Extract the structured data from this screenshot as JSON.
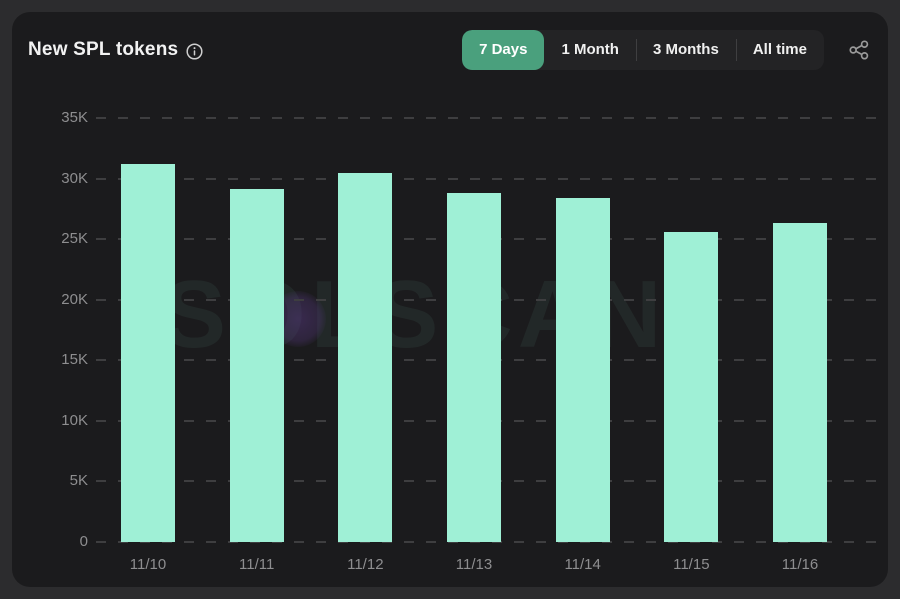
{
  "header": {
    "title": "New SPL tokens",
    "tabs": [
      {
        "label": "7 Days",
        "active": true
      },
      {
        "label": "1 Month",
        "active": false
      },
      {
        "label": "3 Months",
        "active": false
      },
      {
        "label": "All time",
        "active": false
      }
    ],
    "icons": {
      "info": "info-circle-icon",
      "share": "share-nodes-icon"
    }
  },
  "watermark_text": "SOLSCAN",
  "colors": {
    "page_bg": "#2c2c2e",
    "card_bg": "#1b1b1d",
    "title_text": "#f2f2f2",
    "bar": "#9ff0d6",
    "active_tab_bg": "#4aa07d",
    "tab_group_bg": "#232325",
    "grid_line": "#3e3e40",
    "axis_text": "#8e8e90",
    "watermark": "rgba(127,207,177,0.08)"
  },
  "chart_data": {
    "type": "bar",
    "title": "New SPL tokens",
    "categories": [
      "11/10",
      "11/11",
      "11/12",
      "11/13",
      "11/14",
      "11/15",
      "11/16"
    ],
    "values": [
      31200,
      29100,
      30500,
      28800,
      28400,
      25600,
      26300
    ],
    "xlabel": "",
    "ylabel": "",
    "ylim": [
      0,
      35000
    ],
    "ytick_step": 5000,
    "ytick_labels": [
      "0",
      "5K",
      "10K",
      "15K",
      "20K",
      "25K",
      "30K",
      "35K"
    ],
    "grid": "dashed-horizontal",
    "legend": "none",
    "bar_color": "#9ff0d6"
  }
}
